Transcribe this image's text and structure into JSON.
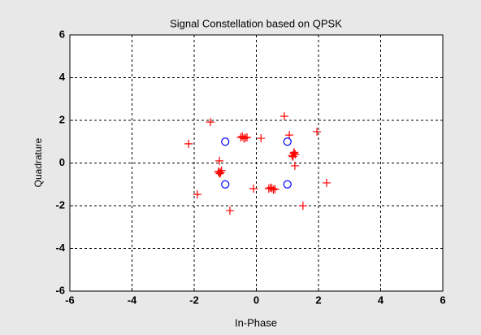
{
  "chart_data": {
    "type": "scatter",
    "title": "Signal Constellation based on QPSK",
    "x_label": "In-Phase",
    "y_label": "Quadrature",
    "xlim": [
      -6,
      6
    ],
    "ylim": [
      -6,
      6
    ],
    "xticks": [
      -6,
      -4,
      -2,
      0,
      2,
      4,
      6
    ],
    "yticks": [
      -6,
      -4,
      -2,
      0,
      2,
      4,
      6
    ],
    "grid": true,
    "series": [
      {
        "color": "#ff0000",
        "marker": "plus",
        "x": [
          -1.48,
          -2.18,
          0.9,
          1.06,
          1.95,
          -0.5,
          -0.4,
          -0.3,
          -0.45,
          -0.35,
          0.15,
          -1.19,
          -1.2,
          -1.15,
          -1.18,
          -1.12,
          -1.22,
          1.2,
          1.25,
          1.15,
          1.22,
          1.18,
          1.24,
          2.26,
          1.5,
          -1.9,
          -0.85,
          -0.09,
          0.4,
          0.5,
          0.6,
          0.45,
          0.55
        ],
        "values": [
          1.92,
          0.9,
          2.19,
          1.31,
          1.47,
          1.2,
          1.15,
          1.2,
          1.25,
          1.18,
          1.16,
          0.1,
          -0.4,
          -0.45,
          -0.5,
          -0.35,
          -0.42,
          0.45,
          0.4,
          0.35,
          0.5,
          0.3,
          -0.13,
          -0.93,
          -2.0,
          -1.47,
          -2.23,
          -1.2,
          -1.2,
          -1.18,
          -1.22,
          -1.15,
          -1.25
        ]
      },
      {
        "color": "#0000ff",
        "marker": "circle",
        "x": [
          -1,
          1,
          -1,
          1
        ],
        "values": [
          1,
          1,
          -1,
          -1
        ]
      }
    ]
  }
}
